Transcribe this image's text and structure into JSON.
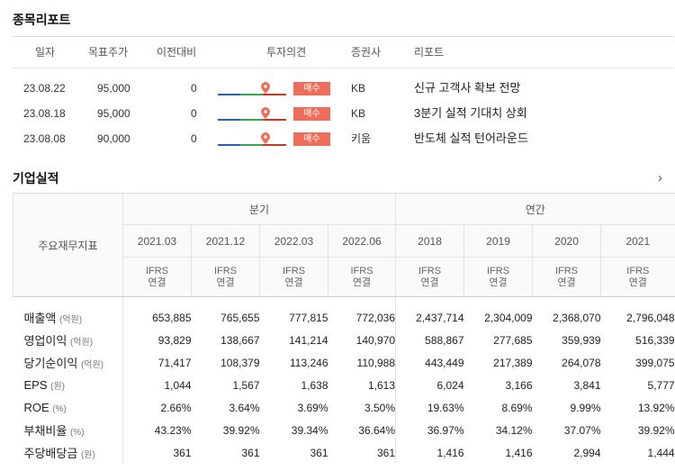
{
  "report_section": {
    "title": "종목리포트",
    "headers": [
      "일자",
      "목표주가",
      "이전대비",
      "투자의견",
      "증권사",
      "리포트"
    ],
    "rows": [
      {
        "date": "23.08.22",
        "target": "95,000",
        "change": "0",
        "opinion": "매수",
        "broker": "KB",
        "title": "신규 고객사 확보 전망"
      },
      {
        "date": "23.08.18",
        "target": "95,000",
        "change": "0",
        "opinion": "매수",
        "broker": "KB",
        "title": "3분기 실적 기대치 상회"
      },
      {
        "date": "23.08.08",
        "target": "90,000",
        "change": "0",
        "opinion": "매수",
        "broker": "키움",
        "title": "반도체 실적 턴어라운드"
      }
    ]
  },
  "perf_section": {
    "title": "기업실적",
    "more_icon": "chevron-right-icon",
    "row_header": "주요재무지표",
    "group_quarter": "분기",
    "group_annual": "연간",
    "periods": [
      "2021.03",
      "2021.12",
      "2022.03",
      "2022.06",
      "2018",
      "2019",
      "2020",
      "2021"
    ],
    "ifrs_top": "IFRS",
    "ifrs_bottom": "연결",
    "rows": [
      {
        "label": "매출액",
        "unit": "(억원)",
        "values": [
          "653,885",
          "765,655",
          "777,815",
          "772,036",
          "2,437,714",
          "2,304,009",
          "2,368,070",
          "2,796,048"
        ]
      },
      {
        "label": "영업이익",
        "unit": "(억원)",
        "values": [
          "93,829",
          "138,667",
          "141,214",
          "140,970",
          "588,867",
          "277,685",
          "359,939",
          "516,339"
        ]
      },
      {
        "label": "당기순이익",
        "unit": "(억원)",
        "values": [
          "71,417",
          "108,379",
          "113,246",
          "110,988",
          "443,449",
          "217,389",
          "264,078",
          "399,075"
        ]
      },
      {
        "label": "EPS",
        "unit": "(원)",
        "values": [
          "1,044",
          "1,567",
          "1,638",
          "1,613",
          "6,024",
          "3,166",
          "3,841",
          "5,777"
        ]
      },
      {
        "label": "ROE",
        "unit": "(%)",
        "values": [
          "2.66%",
          "3.64%",
          "3.69%",
          "3.50%",
          "19.63%",
          "8.69%",
          "9.99%",
          "13.92%"
        ]
      },
      {
        "label": "부채비율",
        "unit": "(%)",
        "values": [
          "43.23%",
          "39.92%",
          "39.34%",
          "36.64%",
          "36.97%",
          "34.12%",
          "37.07%",
          "39.92%"
        ]
      },
      {
        "label": "주당배당금",
        "unit": "(원)",
        "values": [
          "361",
          "361",
          "361",
          "361",
          "1,416",
          "1,416",
          "2,994",
          "1,444"
        ]
      }
    ]
  },
  "colors": {
    "badge": "#ef6e5b",
    "marker": "#ef6e5b",
    "gauge_blue": "#2f5fb3",
    "gauge_green": "#3aa655",
    "gauge_red": "#c0392b"
  }
}
